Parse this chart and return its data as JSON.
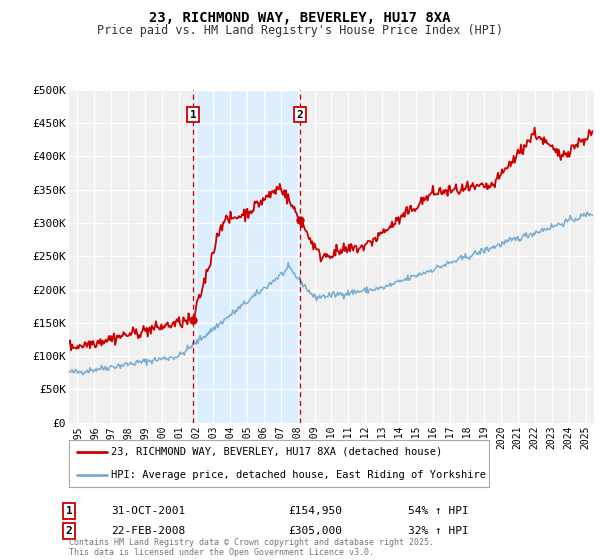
{
  "title": "23, RICHMOND WAY, BEVERLEY, HU17 8XA",
  "subtitle": "Price paid vs. HM Land Registry's House Price Index (HPI)",
  "legend_line1": "23, RICHMOND WAY, BEVERLEY, HU17 8XA (detached house)",
  "legend_line2": "HPI: Average price, detached house, East Riding of Yorkshire",
  "red_color": "#cc0000",
  "blue_color": "#7aadcf",
  "shading_color": "#ddeeff",
  "background_color": "#f0f0f0",
  "footnote": "Contains HM Land Registry data © Crown copyright and database right 2025.\nThis data is licensed under the Open Government Licence v3.0.",
  "xmin": 1994.5,
  "xmax": 2025.5,
  "ymin": 0,
  "ymax": 500000,
  "yticks": [
    0,
    50000,
    100000,
    150000,
    200000,
    250000,
    300000,
    350000,
    400000,
    450000,
    500000
  ],
  "ytick_labels": [
    "£0",
    "£50K",
    "£100K",
    "£150K",
    "£200K",
    "£250K",
    "£300K",
    "£350K",
    "£400K",
    "£450K",
    "£500K"
  ],
  "sale1_x": 2001.833,
  "sale1_y": 154950,
  "sale1_label": "1",
  "sale1_date": "31-OCT-2001",
  "sale1_price": "£154,950",
  "sale1_hpi": "54% ↑ HPI",
  "sale2_x": 2008.13,
  "sale2_y": 305000,
  "sale2_label": "2",
  "sale2_date": "22-FEB-2008",
  "sale2_price": "£305,000",
  "sale2_hpi": "32% ↑ HPI",
  "xticks": [
    1995,
    1996,
    1997,
    1998,
    1999,
    2000,
    2001,
    2002,
    2003,
    2004,
    2005,
    2006,
    2007,
    2008,
    2009,
    2010,
    2011,
    2012,
    2013,
    2014,
    2015,
    2016,
    2017,
    2018,
    2019,
    2020,
    2021,
    2022,
    2023,
    2024,
    2025
  ]
}
